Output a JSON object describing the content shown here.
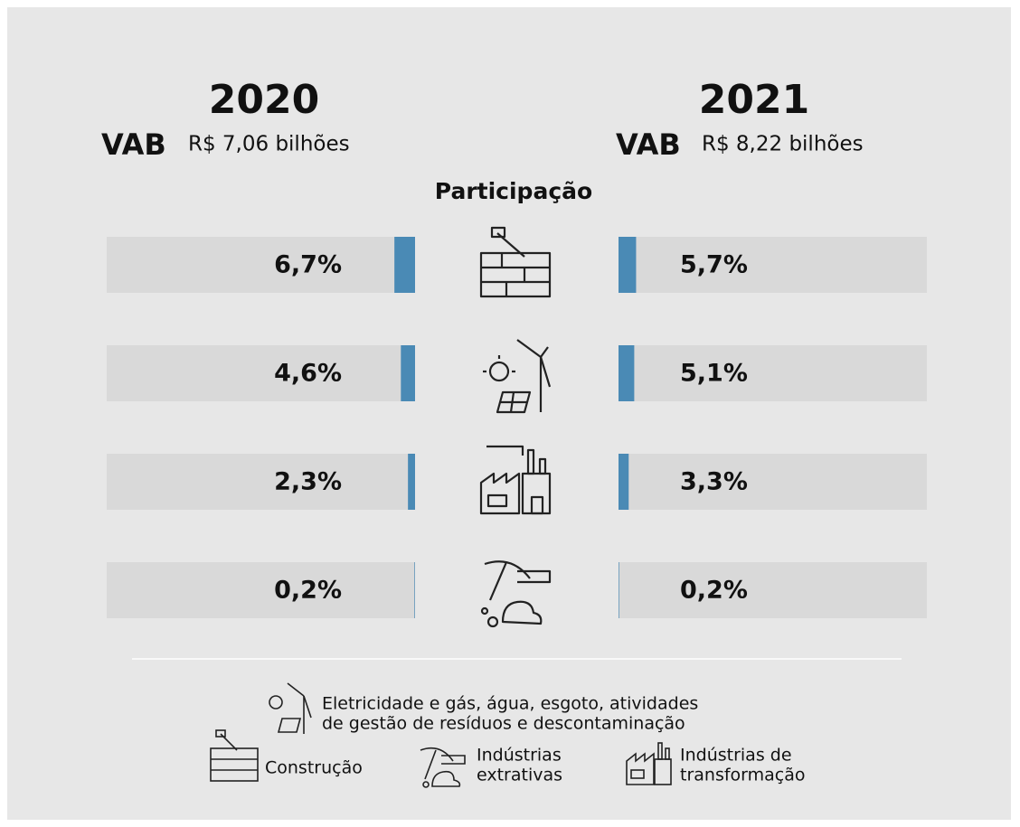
{
  "chart_data": {
    "type": "mirrored-bar",
    "subtitle": "Participação",
    "xlim": [
      0,
      100
    ],
    "color": "#4a8ab5",
    "track_color": "#d9d9d9",
    "panels": [
      {
        "year": "2020",
        "vab": "VAB",
        "vab_value": "R$ 7,06 bilhões",
        "values": [
          6.7,
          4.6,
          2.3,
          0.2
        ],
        "value_labels": [
          "6,7%",
          "4,6%",
          "2,3%",
          "0,2%"
        ]
      },
      {
        "year": "2021",
        "vab": "VAB",
        "vab_value": "R$ 8,22 bilhões",
        "values": [
          5.7,
          5.1,
          3.3,
          0.2
        ],
        "value_labels": [
          "5,7%",
          "5,1%",
          "3,3%",
          "0,2%"
        ]
      }
    ],
    "legend": {
      "electricity": [
        "Eletricidade e gás, água, esgoto, atividades",
        "de gestão de resíduos e descontaminação"
      ],
      "construction": [
        "Construção"
      ],
      "extractive": [
        "Indústrias",
        "extrativas"
      ],
      "transformation": [
        "Indústrias de",
        "transformação"
      ]
    }
  }
}
